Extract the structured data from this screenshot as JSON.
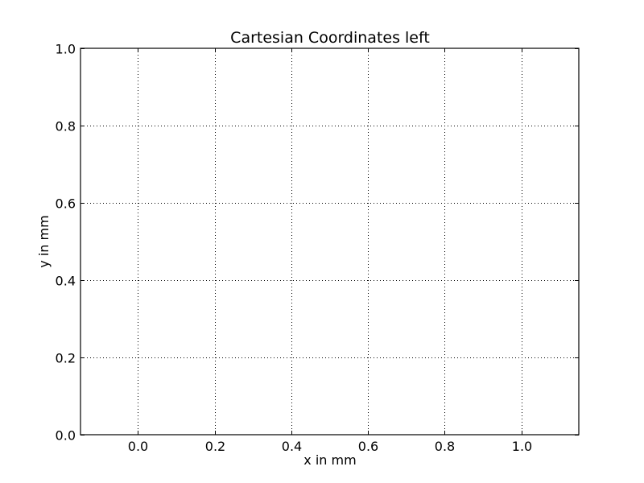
{
  "chart_data": {
    "type": "line",
    "title": "Cartesian Coordinates left",
    "xlabel": "x in mm",
    "ylabel": "y in mm",
    "xlim": [
      -0.15,
      1.15
    ],
    "ylim": [
      0.0,
      1.0
    ],
    "xticks": [
      0.0,
      0.2,
      0.4,
      0.6,
      0.8,
      1.0
    ],
    "xtick_labels": [
      "0.0",
      "0.2",
      "0.4",
      "0.6",
      "0.8",
      "1.0"
    ],
    "yticks": [
      0.0,
      0.2,
      0.4,
      0.6,
      0.8,
      1.0
    ],
    "ytick_labels": [
      "0.0",
      "0.2",
      "0.4",
      "0.6",
      "0.8",
      "1.0"
    ],
    "grid": true,
    "grid_style": "dotted",
    "series": [],
    "colors": {
      "background": "#ffffff",
      "axes": "#000000",
      "grid": "#000000"
    }
  }
}
